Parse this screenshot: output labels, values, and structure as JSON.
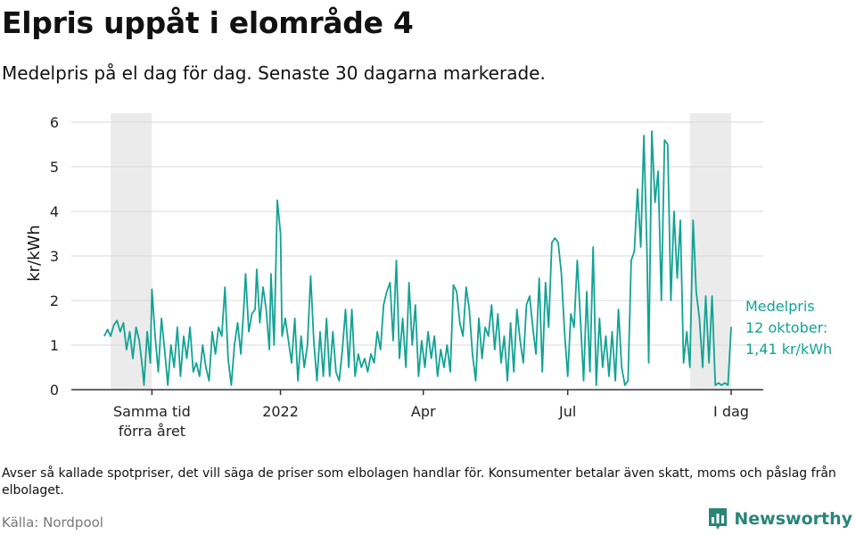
{
  "header": {
    "title": "Elpris uppåt i elområde 4",
    "subtitle": "Medelpris på el dag för dag.  Senaste 30 dagarna markerade."
  },
  "footer": {
    "note": "Avser så kallade spotpriser, det vill säga de priser som elbolagen handlar för. Konsumenter betalar även skatt, moms och påslag från elbolaget.",
    "source": "Källa: Nordpool",
    "brand": "Newsworthy"
  },
  "colors": {
    "line": "#12a394",
    "shade": "#ebebeb",
    "grid": "#d9d9d9",
    "axis": "#333333",
    "brand": "#2a8577"
  },
  "chart_data": {
    "type": "line",
    "title": "Elpris uppåt i elområde 4",
    "ylabel": "kr/kWh",
    "xlabel": "",
    "ylim": [
      0,
      6.2
    ],
    "yticks": [
      0,
      1,
      2,
      3,
      4,
      5,
      6
    ],
    "grid": true,
    "x_start": "2021-09-12",
    "x_end": "2022-10-12",
    "xticks": [
      {
        "date": "2021-10-12",
        "label": "Samma tid förra året"
      },
      {
        "date": "2022-01-01",
        "label": "2022"
      },
      {
        "date": "2022-04-01",
        "label": "Apr"
      },
      {
        "date": "2022-07-01",
        "label": "Jul"
      },
      {
        "date": "2022-10-12",
        "label": "I dag"
      }
    ],
    "shaded_ranges": [
      {
        "from": "2021-09-16",
        "to": "2021-10-12"
      },
      {
        "from": "2022-09-16",
        "to": "2022-10-12"
      }
    ],
    "annotation": {
      "lines": [
        "Medelpris",
        "12 oktober:",
        "1,41 kr/kWh"
      ],
      "date": "2022-10-12",
      "value": 1.41
    },
    "series": [
      {
        "points": [
          [
            "2021-09-12",
            1.2
          ],
          [
            "2021-09-14",
            1.35
          ],
          [
            "2021-09-16",
            1.2
          ],
          [
            "2021-09-18",
            1.45
          ],
          [
            "2021-09-20",
            1.55
          ],
          [
            "2021-09-22",
            1.3
          ],
          [
            "2021-09-24",
            1.5
          ],
          [
            "2021-09-26",
            0.9
          ],
          [
            "2021-09-28",
            1.3
          ],
          [
            "2021-09-30",
            0.7
          ],
          [
            "2021-10-02",
            1.4
          ],
          [
            "2021-10-04",
            1.1
          ],
          [
            "2021-10-06",
            0.5
          ],
          [
            "2021-10-07",
            0.1
          ],
          [
            "2021-10-09",
            1.3
          ],
          [
            "2021-10-11",
            0.6
          ],
          [
            "2021-10-12",
            2.25
          ],
          [
            "2021-10-14",
            1.2
          ],
          [
            "2021-10-16",
            0.4
          ],
          [
            "2021-10-18",
            1.6
          ],
          [
            "2021-10-20",
            0.9
          ],
          [
            "2021-10-22",
            0.1
          ],
          [
            "2021-10-24",
            1.0
          ],
          [
            "2021-10-26",
            0.5
          ],
          [
            "2021-10-28",
            1.4
          ],
          [
            "2021-10-30",
            0.3
          ],
          [
            "2021-11-01",
            1.2
          ],
          [
            "2021-11-03",
            0.7
          ],
          [
            "2021-11-05",
            1.4
          ],
          [
            "2021-11-07",
            0.4
          ],
          [
            "2021-11-09",
            0.6
          ],
          [
            "2021-11-11",
            0.3
          ],
          [
            "2021-11-13",
            1.0
          ],
          [
            "2021-11-15",
            0.5
          ],
          [
            "2021-11-17",
            0.2
          ],
          [
            "2021-11-19",
            1.3
          ],
          [
            "2021-11-21",
            0.8
          ],
          [
            "2021-11-23",
            1.4
          ],
          [
            "2021-11-25",
            1.2
          ],
          [
            "2021-11-27",
            2.3
          ],
          [
            "2021-11-29",
            0.7
          ],
          [
            "2021-12-01",
            0.1
          ],
          [
            "2021-12-03",
            1.0
          ],
          [
            "2021-12-05",
            1.5
          ],
          [
            "2021-12-07",
            0.8
          ],
          [
            "2021-12-09",
            1.9
          ],
          [
            "2021-12-10",
            2.6
          ],
          [
            "2021-12-12",
            1.3
          ],
          [
            "2021-12-14",
            1.7
          ],
          [
            "2021-12-16",
            1.8
          ],
          [
            "2021-12-17",
            2.7
          ],
          [
            "2021-12-19",
            1.5
          ],
          [
            "2021-12-21",
            2.3
          ],
          [
            "2021-12-23",
            1.8
          ],
          [
            "2021-12-25",
            0.9
          ],
          [
            "2021-12-26",
            2.6
          ],
          [
            "2021-12-28",
            1.0
          ],
          [
            "2021-12-30",
            4.25
          ],
          [
            "2022-01-01",
            3.5
          ],
          [
            "2022-01-02",
            1.2
          ],
          [
            "2022-01-04",
            1.6
          ],
          [
            "2022-01-06",
            1.1
          ],
          [
            "2022-01-08",
            0.6
          ],
          [
            "2022-01-10",
            1.6
          ],
          [
            "2022-01-12",
            0.2
          ],
          [
            "2022-01-14",
            1.2
          ],
          [
            "2022-01-16",
            0.5
          ],
          [
            "2022-01-18",
            1.0
          ],
          [
            "2022-01-20",
            2.55
          ],
          [
            "2022-01-22",
            1.1
          ],
          [
            "2022-01-24",
            0.2
          ],
          [
            "2022-01-26",
            1.3
          ],
          [
            "2022-01-28",
            0.3
          ],
          [
            "2022-01-30",
            1.6
          ],
          [
            "2022-02-01",
            0.3
          ],
          [
            "2022-02-03",
            1.3
          ],
          [
            "2022-02-05",
            0.4
          ],
          [
            "2022-02-07",
            0.2
          ],
          [
            "2022-02-09",
            0.9
          ],
          [
            "2022-02-11",
            1.8
          ],
          [
            "2022-02-13",
            0.5
          ],
          [
            "2022-02-15",
            1.8
          ],
          [
            "2022-02-17",
            0.3
          ],
          [
            "2022-02-19",
            0.8
          ],
          [
            "2022-02-21",
            0.5
          ],
          [
            "2022-02-23",
            0.7
          ],
          [
            "2022-02-25",
            0.4
          ],
          [
            "2022-02-27",
            0.8
          ],
          [
            "2022-03-01",
            0.6
          ],
          [
            "2022-03-03",
            1.3
          ],
          [
            "2022-03-05",
            0.9
          ],
          [
            "2022-03-07",
            1.9
          ],
          [
            "2022-03-09",
            2.2
          ],
          [
            "2022-03-11",
            2.4
          ],
          [
            "2022-03-13",
            1.1
          ],
          [
            "2022-03-15",
            2.9
          ],
          [
            "2022-03-17",
            0.7
          ],
          [
            "2022-03-19",
            1.6
          ],
          [
            "2022-03-21",
            0.5
          ],
          [
            "2022-03-23",
            2.4
          ],
          [
            "2022-03-25",
            1.0
          ],
          [
            "2022-03-27",
            1.9
          ],
          [
            "2022-03-29",
            0.3
          ],
          [
            "2022-03-31",
            1.1
          ],
          [
            "2022-04-02",
            0.5
          ],
          [
            "2022-04-04",
            1.3
          ],
          [
            "2022-04-06",
            0.7
          ],
          [
            "2022-04-08",
            1.2
          ],
          [
            "2022-04-10",
            0.3
          ],
          [
            "2022-04-12",
            0.9
          ],
          [
            "2022-04-14",
            0.5
          ],
          [
            "2022-04-16",
            1.0
          ],
          [
            "2022-04-18",
            0.4
          ],
          [
            "2022-04-20",
            2.35
          ],
          [
            "2022-04-22",
            2.2
          ],
          [
            "2022-04-24",
            1.5
          ],
          [
            "2022-04-26",
            1.2
          ],
          [
            "2022-04-28",
            2.3
          ],
          [
            "2022-04-30",
            1.8
          ],
          [
            "2022-05-02",
            0.8
          ],
          [
            "2022-05-04",
            0.2
          ],
          [
            "2022-05-06",
            1.6
          ],
          [
            "2022-05-08",
            0.7
          ],
          [
            "2022-05-10",
            1.4
          ],
          [
            "2022-05-12",
            1.2
          ],
          [
            "2022-05-14",
            1.9
          ],
          [
            "2022-05-16",
            0.9
          ],
          [
            "2022-05-18",
            1.7
          ],
          [
            "2022-05-20",
            0.6
          ],
          [
            "2022-05-22",
            1.2
          ],
          [
            "2022-05-24",
            0.2
          ],
          [
            "2022-05-26",
            1.5
          ],
          [
            "2022-05-28",
            0.4
          ],
          [
            "2022-05-30",
            1.8
          ],
          [
            "2022-06-01",
            1.1
          ],
          [
            "2022-06-03",
            0.6
          ],
          [
            "2022-06-05",
            1.9
          ],
          [
            "2022-06-07",
            2.1
          ],
          [
            "2022-06-09",
            1.4
          ],
          [
            "2022-06-11",
            0.8
          ],
          [
            "2022-06-13",
            2.5
          ],
          [
            "2022-06-15",
            0.4
          ],
          [
            "2022-06-17",
            2.4
          ],
          [
            "2022-06-19",
            1.4
          ],
          [
            "2022-06-21",
            3.3
          ],
          [
            "2022-06-23",
            3.4
          ],
          [
            "2022-06-25",
            3.3
          ],
          [
            "2022-06-27",
            2.6
          ],
          [
            "2022-06-29",
            1.3
          ],
          [
            "2022-07-01",
            0.3
          ],
          [
            "2022-07-03",
            1.7
          ],
          [
            "2022-07-05",
            1.4
          ],
          [
            "2022-07-07",
            2.9
          ],
          [
            "2022-07-09",
            1.6
          ],
          [
            "2022-07-11",
            0.2
          ],
          [
            "2022-07-13",
            2.2
          ],
          [
            "2022-07-15",
            0.4
          ],
          [
            "2022-07-17",
            3.2
          ],
          [
            "2022-07-19",
            0.1
          ],
          [
            "2022-07-21",
            1.6
          ],
          [
            "2022-07-23",
            0.5
          ],
          [
            "2022-07-25",
            1.2
          ],
          [
            "2022-07-27",
            0.3
          ],
          [
            "2022-07-29",
            1.3
          ],
          [
            "2022-07-31",
            0.2
          ],
          [
            "2022-08-02",
            1.8
          ],
          [
            "2022-08-04",
            0.5
          ],
          [
            "2022-08-06",
            0.1
          ],
          [
            "2022-08-08",
            0.2
          ],
          [
            "2022-08-10",
            2.9
          ],
          [
            "2022-08-12",
            3.1
          ],
          [
            "2022-08-14",
            4.5
          ],
          [
            "2022-08-16",
            3.2
          ],
          [
            "2022-08-18",
            5.7
          ],
          [
            "2022-08-20",
            3.0
          ],
          [
            "2022-08-21",
            0.6
          ],
          [
            "2022-08-23",
            5.8
          ],
          [
            "2022-08-25",
            4.2
          ],
          [
            "2022-08-27",
            4.9
          ],
          [
            "2022-08-29",
            2.0
          ],
          [
            "2022-08-31",
            5.6
          ],
          [
            "2022-09-02",
            5.5
          ],
          [
            "2022-09-04",
            2.0
          ],
          [
            "2022-09-06",
            4.0
          ],
          [
            "2022-09-08",
            2.5
          ],
          [
            "2022-09-10",
            3.8
          ],
          [
            "2022-09-12",
            0.6
          ],
          [
            "2022-09-14",
            1.3
          ],
          [
            "2022-09-16",
            0.5
          ],
          [
            "2022-09-18",
            3.8
          ],
          [
            "2022-09-20",
            2.2
          ],
          [
            "2022-09-22",
            1.6
          ],
          [
            "2022-09-24",
            0.5
          ],
          [
            "2022-09-26",
            2.1
          ],
          [
            "2022-09-28",
            0.6
          ],
          [
            "2022-09-30",
            2.1
          ],
          [
            "2022-10-02",
            0.1
          ],
          [
            "2022-10-04",
            0.15
          ],
          [
            "2022-10-06",
            0.1
          ],
          [
            "2022-10-08",
            0.15
          ],
          [
            "2022-10-10",
            0.1
          ],
          [
            "2022-10-12",
            1.41
          ]
        ]
      }
    ]
  }
}
